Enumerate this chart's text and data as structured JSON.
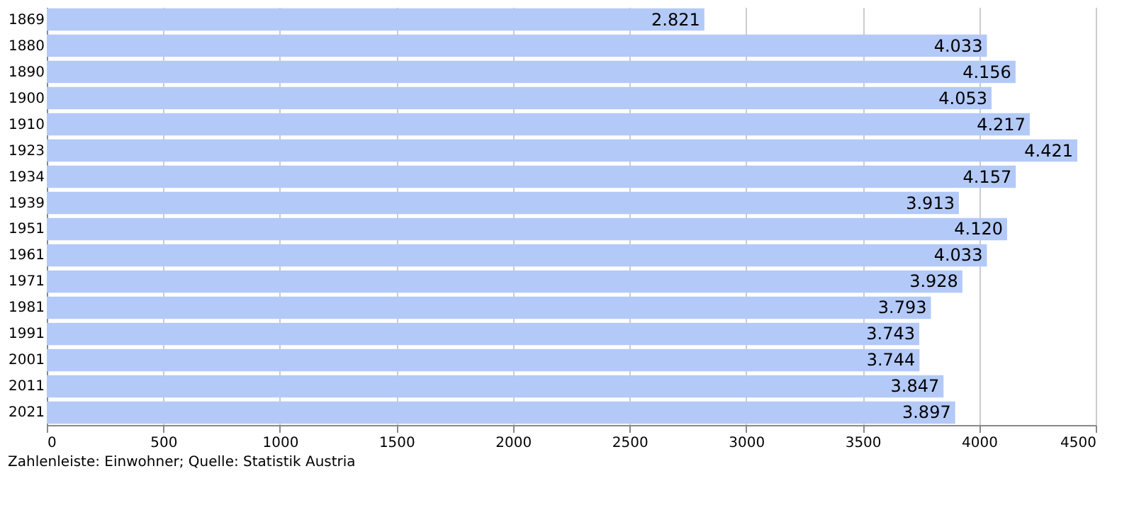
{
  "chart_data": {
    "type": "bar",
    "orientation": "horizontal",
    "categories": [
      "1869",
      "1880",
      "1890",
      "1900",
      "1910",
      "1923",
      "1934",
      "1939",
      "1951",
      "1961",
      "1971",
      "1981",
      "1991",
      "2001",
      "2011",
      "2021"
    ],
    "values": [
      2821,
      4033,
      4156,
      4053,
      4217,
      4421,
      4157,
      3913,
      4120,
      4033,
      3928,
      3793,
      3743,
      3744,
      3847,
      3897
    ],
    "value_labels": [
      "2.821",
      "4.033",
      "4.156",
      "4.053",
      "4.217",
      "4.421",
      "4.157",
      "3.913",
      "4.120",
      "4.033",
      "3.928",
      "3.793",
      "3.743",
      "3.744",
      "3.847",
      "3.897"
    ],
    "color": "#b3c9f8",
    "xlim": [
      0,
      4500
    ],
    "xticks": [
      0,
      500,
      1000,
      1500,
      2000,
      2500,
      3000,
      3500,
      4000,
      4500
    ],
    "grid": "x",
    "annotations": [
      "Zahlenleiste: Einwohner; Quelle: Statistik Austria"
    ]
  }
}
